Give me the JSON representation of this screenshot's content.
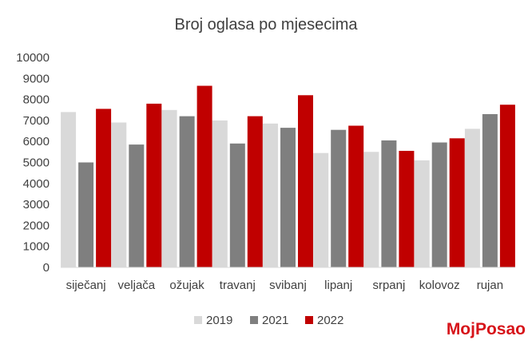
{
  "brand": {
    "logo_text": "MojPosao"
  },
  "chart_data": {
    "type": "bar",
    "title": "Broj oglasa po mjesecima",
    "xlabel": "",
    "ylabel": "",
    "ylim": [
      0,
      10000
    ],
    "yticks": [
      0,
      1000,
      2000,
      3000,
      4000,
      5000,
      6000,
      7000,
      8000,
      9000,
      10000
    ],
    "grid": false,
    "legend": "bottom",
    "categories": [
      "siječanj",
      "veljača",
      "ožujak",
      "travanj",
      "svibanj",
      "lipanj",
      "srpanj",
      "kolovoz",
      "rujan"
    ],
    "series": [
      {
        "name": "2019",
        "color": "#d9d9d9",
        "values": [
          7400,
          6900,
          7500,
          7000,
          6850,
          5450,
          5500,
          5100,
          6600
        ]
      },
      {
        "name": "2021",
        "color": "#7f7f7f",
        "values": [
          5000,
          5850,
          7200,
          5900,
          6650,
          6550,
          6050,
          5950,
          7300
        ]
      },
      {
        "name": "2022",
        "color": "#c00000",
        "values": [
          7550,
          7800,
          8650,
          7200,
          8200,
          6750,
          5550,
          6150,
          7750
        ]
      }
    ]
  }
}
